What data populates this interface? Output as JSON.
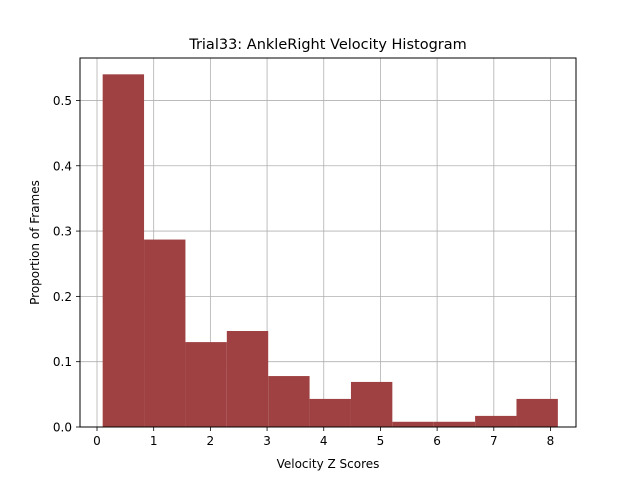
{
  "chart_data": {
    "type": "bar",
    "title": "Trial33: AnkleRight Velocity Histogram",
    "xlabel": "Velocity Z Scores",
    "ylabel": "Proportion of Frames",
    "xlim": [
      -0.3,
      8.45
    ],
    "ylim": [
      0,
      0.565
    ],
    "xticks": [
      0,
      1,
      2,
      3,
      4,
      5,
      6,
      7,
      8
    ],
    "yticks": [
      0.0,
      0.1,
      0.2,
      0.3,
      0.4,
      0.5
    ],
    "ytick_labels": [
      "0.0",
      "0.1",
      "0.2",
      "0.3",
      "0.4",
      "0.5"
    ],
    "grid": true,
    "bar_color": "#9f4142",
    "bins": [
      {
        "x0": 0.1,
        "x1": 0.83,
        "value": 0.54
      },
      {
        "x0": 0.83,
        "x1": 1.56,
        "value": 0.287
      },
      {
        "x0": 1.56,
        "x1": 2.29,
        "value": 0.13
      },
      {
        "x0": 2.29,
        "x1": 3.02,
        "value": 0.147
      },
      {
        "x0": 3.02,
        "x1": 3.75,
        "value": 0.078
      },
      {
        "x0": 3.75,
        "x1": 4.48,
        "value": 0.043
      },
      {
        "x0": 4.48,
        "x1": 5.21,
        "value": 0.069
      },
      {
        "x0": 5.21,
        "x1": 5.94,
        "value": 0.008
      },
      {
        "x0": 5.94,
        "x1": 6.67,
        "value": 0.008
      },
      {
        "x0": 6.67,
        "x1": 7.4,
        "value": 0.017
      },
      {
        "x0": 7.4,
        "x1": 8.13,
        "value": 0.043
      }
    ]
  }
}
